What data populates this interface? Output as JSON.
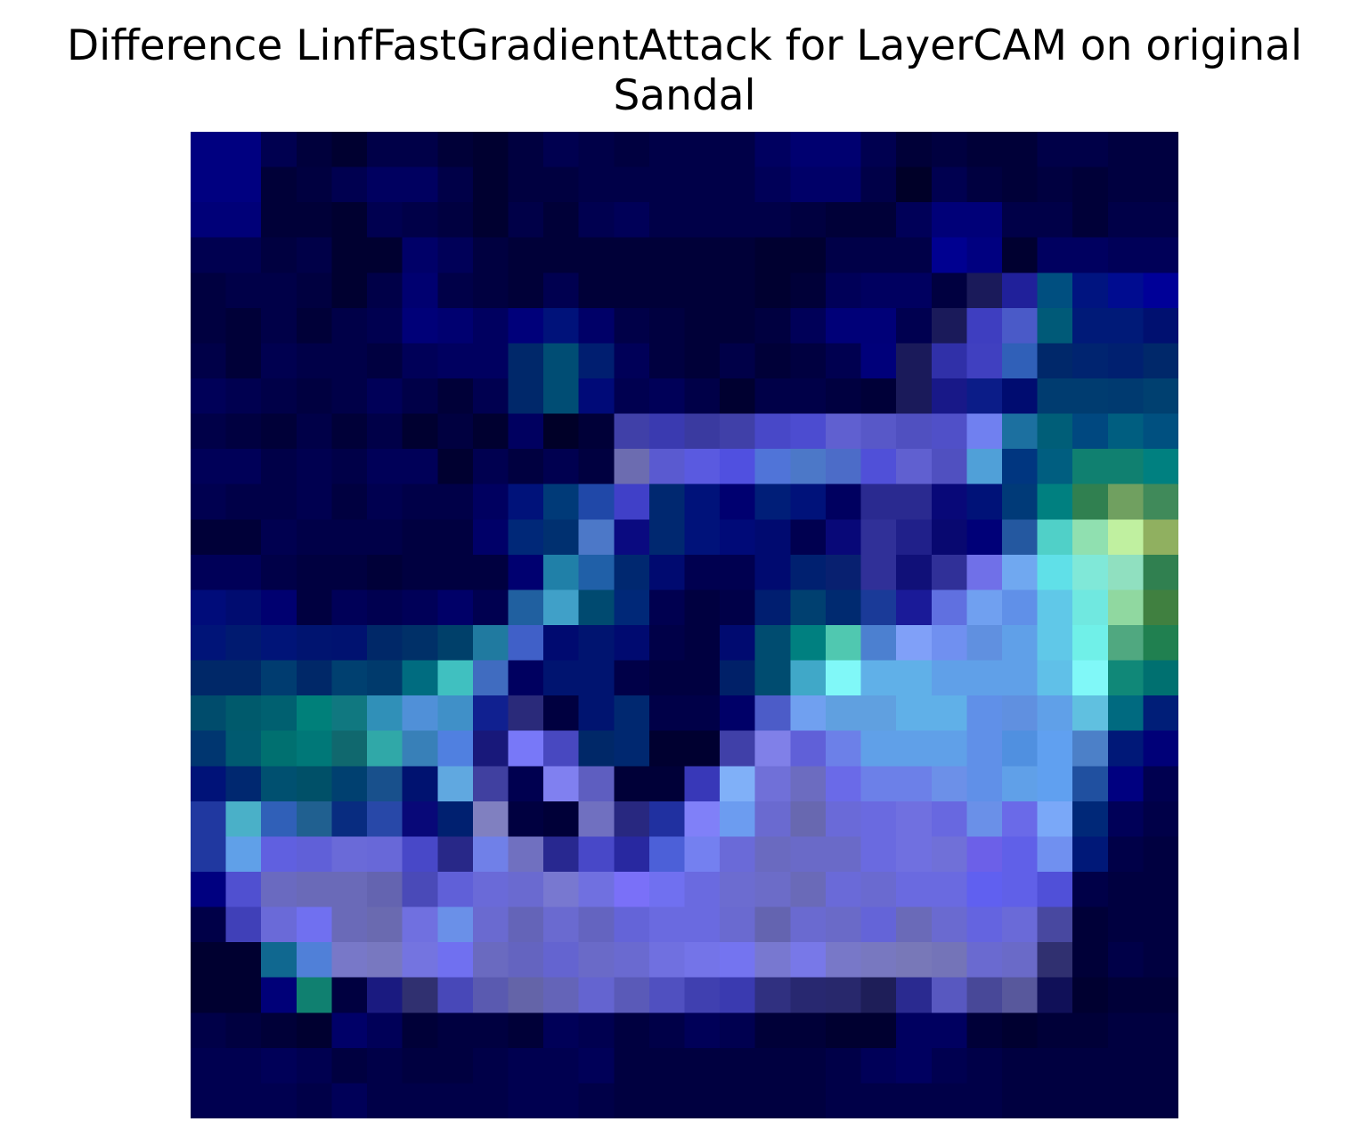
{
  "title": {
    "line1": "Difference LinfFastGradientAttack for LayerCAM on original",
    "line2": "Sandal"
  },
  "chart_data": {
    "type": "heatmap",
    "title": "Difference LinfFastGradientAttack for LayerCAM on original Sandal",
    "xlabel": "",
    "ylabel": "",
    "axes_visible": false,
    "rows": 28,
    "cols": 28,
    "colors": [
      "#000080",
      "#000080",
      "#000050",
      "#00003c",
      "#000030",
      "#000048",
      "#000048",
      "#000038",
      "#000030",
      "#000040",
      "#000050",
      "#000048",
      "#000040",
      "#000048",
      "#000048",
      "#000048",
      "#000060",
      "#000070",
      "#000070",
      "#000050",
      "#000038",
      "#000040",
      "#000038",
      "#000038",
      "#000048",
      "#000048",
      "#000040",
      "#000040",
      "#000080",
      "#000080",
      "#000038",
      "#000040",
      "#000050",
      "#000060",
      "#000060",
      "#000048",
      "#000030",
      "#000040",
      "#000040",
      "#000048",
      "#000048",
      "#000048",
      "#000048",
      "#000048",
      "#000058",
      "#000068",
      "#000068",
      "#000048",
      "#000028",
      "#000050",
      "#000040",
      "#000038",
      "#000040",
      "#000038",
      "#000040",
      "#000040",
      "#000078",
      "#000078",
      "#000038",
      "#000038",
      "#000030",
      "#000050",
      "#000048",
      "#000040",
      "#000030",
      "#000048",
      "#000038",
      "#000050",
      "#000058",
      "#000048",
      "#000048",
      "#000048",
      "#000048",
      "#000040",
      "#000038",
      "#000038",
      "#000058",
      "#000078",
      "#000078",
      "#000048",
      "#000048",
      "#000038",
      "#000048",
      "#000048",
      "#000050",
      "#000050",
      "#000040",
      "#000048",
      "#000030",
      "#000030",
      "#000068",
      "#000058",
      "#000040",
      "#000038",
      "#000038",
      "#000038",
      "#000038",
      "#000038",
      "#000038",
      "#000038",
      "#000030",
      "#000030",
      "#000048",
      "#000048",
      "#000048",
      "#000090",
      "#000080",
      "#000030",
      "#000060",
      "#000060",
      "#000058",
      "#000058",
      "#000040",
      "#000048",
      "#000048",
      "#000040",
      "#000030",
      "#000048",
      "#000070",
      "#000048",
      "#000040",
      "#000038",
      "#000050",
      "#000038",
      "#000038",
      "#000038",
      "#000038",
      "#000038",
      "#000030",
      "#000038",
      "#000058",
      "#000060",
      "#000060",
      "#000040",
      "#1a1a5a",
      "#20209a",
      "#004f80",
      "#001480",
      "#000c90",
      "#000098",
      "#000040",
      "#000038",
      "#000048",
      "#000038",
      "#000048",
      "#000050",
      "#000078",
      "#000070",
      "#000060",
      "#00007a",
      "#00127a",
      "#000068",
      "#000048",
      "#000040",
      "#000038",
      "#000038",
      "#000040",
      "#000058",
      "#000078",
      "#000078",
      "#000050",
      "#1a1a5a",
      "#3e3ec0",
      "#4a5ac8",
      "#005a78",
      "#001a78",
      "#001a78",
      "#001070",
      "#000048",
      "#000038",
      "#000050",
      "#000048",
      "#000048",
      "#000040",
      "#000058",
      "#000060",
      "#000060",
      "#00286a",
      "#004d74",
      "#001e70",
      "#000058",
      "#000040",
      "#000038",
      "#000048",
      "#000038",
      "#000040",
      "#000050",
      "#00007a",
      "#1a1a5a",
      "#3030a8",
      "#4040c0",
      "#3060b8",
      "#00286a",
      "#002470",
      "#002070",
      "#00286a",
      "#000058",
      "#000050",
      "#000048",
      "#000040",
      "#000048",
      "#000058",
      "#000048",
      "#000038",
      "#000050",
      "#00286a",
      "#004d74",
      "#000a78",
      "#000050",
      "#000058",
      "#000048",
      "#000030",
      "#000048",
      "#000048",
      "#000040",
      "#000038",
      "#1a1a5a",
      "#181888",
      "#0b1c88",
      "#000c70",
      "#003c70",
      "#003c70",
      "#003a70",
      "#004070",
      "#000048",
      "#000040",
      "#000038",
      "#000048",
      "#000038",
      "#000048",
      "#000030",
      "#000040",
      "#000030",
      "#000060",
      "#000028",
      "#000038",
      "#4040a8",
      "#3a3ab0",
      "#3a3aa0",
      "#4040a8",
      "#4848c8",
      "#4c4cd0",
      "#6060d0",
      "#5858c8",
      "#5050c0",
      "#5050c8",
      "#7080f0",
      "#1c70a0",
      "#005e78",
      "#004880",
      "#005e80",
      "#005080",
      "#000058",
      "#000058",
      "#000048",
      "#000050",
      "#000048",
      "#000058",
      "#000058",
      "#000030",
      "#000050",
      "#000040",
      "#000050",
      "#000040",
      "#6c6cb0",
      "#5a5ad0",
      "#5a5ae0",
      "#5050e0",
      "#5074d8",
      "#4c78c8",
      "#4c6cc8",
      "#5050d8",
      "#6060d0",
      "#5050c0",
      "#50a0d8",
      "#003680",
      "#005e80",
      "#108070",
      "#108070",
      "#008080",
      "#000050",
      "#000048",
      "#000048",
      "#000050",
      "#000040",
      "#000050",
      "#000048",
      "#000048",
      "#000060",
      "#00127a",
      "#003a78",
      "#2048a8",
      "#4040c8",
      "#002870",
      "#00127a",
      "#000070",
      "#001e78",
      "#00127a",
      "#000060",
      "#2a2a90",
      "#2a2a90",
      "#080878",
      "#001278",
      "#003a78",
      "#008080",
      "#308050",
      "#70a060",
      "#408a5a",
      "#000038",
      "#000038",
      "#000050",
      "#000048",
      "#000048",
      "#000048",
      "#000040",
      "#000040",
      "#000068",
      "#002878",
      "#003070",
      "#4c78c8",
      "#0a0a80",
      "#002870",
      "#00127a",
      "#000a78",
      "#000a70",
      "#000050",
      "#080878",
      "#303098",
      "#20208a",
      "#080870",
      "#000078",
      "#2458a0",
      "#50d0c8",
      "#90e0b0",
      "#c0f0a0",
      "#90b060",
      "#000058",
      "#000058",
      "#000048",
      "#000040",
      "#000040",
      "#000038",
      "#000040",
      "#000040",
      "#000040",
      "#000070",
      "#2080a8",
      "#2060a8",
      "#002870",
      "#000a70",
      "#000050",
      "#000050",
      "#000a70",
      "#002070",
      "#082070",
      "#303098",
      "#101078",
      "#303098",
      "#7070e8",
      "#70a8f0",
      "#60e0e8",
      "#80e8d8",
      "#90e0c0",
      "#308050",
      "#000c7a",
      "#000c70",
      "#000070",
      "#000040",
      "#000058",
      "#000050",
      "#000058",
      "#000068",
      "#000050",
      "#2060a0",
      "#40a0c8",
      "#004a70",
      "#002878",
      "#000050",
      "#000040",
      "#000048",
      "#001e70",
      "#004070",
      "#002a70",
      "#1a3a98",
      "#1a1a98",
      "#6070e0",
      "#70a0f0",
      "#6090e8",
      "#60c8e8",
      "#70e8e0",
      "#90d8a0",
      "#408040",
      "#001478",
      "#001a70",
      "#001478",
      "#001470",
      "#001270",
      "#002868",
      "#003068",
      "#00406a",
      "#207aa0",
      "#4060c8",
      "#000a70",
      "#001470",
      "#000a70",
      "#000048",
      "#000040",
      "#000a70",
      "#004c70",
      "#008080",
      "#50c8b0",
      "#4c80d0",
      "#80a0f8",
      "#7090f0",
      "#6090e0",
      "#60a0e8",
      "#60c8e8",
      "#70f0e8",
      "#50a880",
      "#208050",
      "#002868",
      "#002868",
      "#003c70",
      "#002868",
      "#004070",
      "#003a6c",
      "#006c80",
      "#40c0c0",
      "#406cc0",
      "#000060",
      "#001470",
      "#001470",
      "#000048",
      "#000040",
      "#000040",
      "#002068",
      "#004c70",
      "#40a8c8",
      "#80f8f8",
      "#60b0e8",
      "#60b0e8",
      "#60a0e8",
      "#60a0e8",
      "#60a0e8",
      "#60c0e8",
      "#80f8f8",
      "#108878",
      "#007070",
      "#004c6c",
      "#005a6c",
      "#006070",
      "#00807a",
      "#107880",
      "#3090b8",
      "#5090d8",
      "#4090c8",
      "#102090",
      "#2a2a7a",
      "#000040",
      "#001470",
      "#002870",
      "#000048",
      "#000048",
      "#000068",
      "#4c5cc8",
      "#70a0f0",
      "#60a0e0",
      "#60a0e0",
      "#60b0e8",
      "#60b0e8",
      "#6090e8",
      "#6090e0",
      "#60a0e8",
      "#60c0e0",
      "#006a80",
      "#001e78",
      "#003670",
      "#005a70",
      "#007070",
      "#007878",
      "#10686e",
      "#30a8a8",
      "#3880b8",
      "#5080e0",
      "#18187a",
      "#7878f8",
      "#4848c0",
      "#002868",
      "#002870",
      "#000030",
      "#000030",
      "#4040a8",
      "#8080e8",
      "#6060d8",
      "#6c80e8",
      "#60a0e8",
      "#60a0e8",
      "#60a0e8",
      "#6090e8",
      "#5090e0",
      "#60a0f0",
      "#4c80c8",
      "#001878",
      "#000078",
      "#001278",
      "#002870",
      "#005070",
      "#005068",
      "#004070",
      "#18508c",
      "#001270",
      "#60a8e0",
      "#4040a0",
      "#000050",
      "#8080f0",
      "#5e5ec0",
      "#000038",
      "#000038",
      "#3838b8",
      "#80b0f8",
      "#7070d8",
      "#6c6cc0",
      "#6a6ae8",
      "#6c80e8",
      "#6c80e8",
      "#6c90e8",
      "#6090e8",
      "#60a0e8",
      "#60a0f0",
      "#2050a0",
      "#000080",
      "#000050",
      "#2038a0",
      "#4ab0c8",
      "#3060b8",
      "#206090",
      "#082c80",
      "#2848a8",
      "#080878",
      "#002070",
      "#8080c0",
      "#000040",
      "#000038",
      "#7070c0",
      "#282880",
      "#2030a0",
      "#8080f8",
      "#6c9cf0",
      "#6a6ad0",
      "#6868b0",
      "#6a6ad8",
      "#6a6ae0",
      "#7070e0",
      "#6868e0",
      "#6a90e8",
      "#6a6ae8",
      "#7aa8f8",
      "#002878",
      "#000058",
      "#000048",
      "#2038a0",
      "#60a0e8",
      "#6060e0",
      "#6060d8",
      "#6a6ad8",
      "#6868d8",
      "#4848c8",
      "#282888",
      "#7080e8",
      "#7070c0",
      "#282890",
      "#4848c8",
      "#2828a0",
      "#4c60d8",
      "#7480f0",
      "#6a6ad8",
      "#6a6ac0",
      "#6a6ac8",
      "#6a6ac8",
      "#6a6ae0",
      "#7070e0",
      "#7070d8",
      "#6c60e8",
      "#6060e8",
      "#7090f0",
      "#001878",
      "#000048",
      "#000040",
      "#000080",
      "#5050d0",
      "#6a6ac0",
      "#6a6ab8",
      "#6a6ab8",
      "#6464b0",
      "#4a4ab8",
      "#6060d8",
      "#6a6ad8",
      "#6a6ad0",
      "#7878d0",
      "#7070e0",
      "#7a70f8",
      "#7070f0",
      "#6a6ae0",
      "#6c6cd0",
      "#6c6cc8",
      "#6a6ab8",
      "#6a6ad8",
      "#6a6ad0",
      "#6a6ae0",
      "#6a6ae0",
      "#6060f0",
      "#6060e8",
      "#5050d8",
      "#000048",
      "#000040",
      "#000040",
      "#000048",
      "#4040b8",
      "#6a6ad8",
      "#7070f0",
      "#6a6ab8",
      "#6a6ab0",
      "#7070e0",
      "#6a90e8",
      "#6a6ad0",
      "#6464b8",
      "#6a6ad0",
      "#6464c0",
      "#6464d8",
      "#6a6ae0",
      "#6a6ae0",
      "#6a6ad0",
      "#6464b0",
      "#6a6ad0",
      "#6a6ac8",
      "#6464d8",
      "#6a6ab8",
      "#6a6ad0",
      "#6464e0",
      "#6a6ad8",
      "#4848a0",
      "#000038",
      "#000040",
      "#000040",
      "#000030",
      "#000030",
      "#106890",
      "#5080d8",
      "#7878c8",
      "#7878c0",
      "#7474e0",
      "#7070f0",
      "#6a6ac0",
      "#6464c0",
      "#6464d0",
      "#6a6ac8",
      "#6a6ad0",
      "#7070e0",
      "#7474e8",
      "#7474f0",
      "#7878d0",
      "#7878e8",
      "#7878c8",
      "#7878c0",
      "#7878b8",
      "#7474b8",
      "#6a6ad0",
      "#6a6ac8",
      "#303070",
      "#000038",
      "#000048",
      "#000040",
      "#000030",
      "#000030",
      "#000078",
      "#108070",
      "#000040",
      "#1a1a80",
      "#303070",
      "#4848b8",
      "#5a5ab0",
      "#6464a8",
      "#6464b8",
      "#6464d0",
      "#5a5ab8",
      "#5050c0",
      "#4040b0",
      "#3a3ab0",
      "#303080",
      "#282870",
      "#28286c",
      "#1e1e58",
      "#2a2a90",
      "#5858c0",
      "#484898",
      "#58589c",
      "#101058",
      "#000030",
      "#000038",
      "#000038",
      "#000048",
      "#000040",
      "#000038",
      "#000030",
      "#000068",
      "#000058",
      "#000038",
      "#000040",
      "#000040",
      "#000038",
      "#000058",
      "#000050",
      "#000040",
      "#000048",
      "#000058",
      "#000050",
      "#000038",
      "#000038",
      "#000030",
      "#000030",
      "#000060",
      "#000060",
      "#000038",
      "#000030",
      "#000038",
      "#000038",
      "#000040",
      "#000040",
      "#000050",
      "#000050",
      "#000058",
      "#000050",
      "#000040",
      "#000048",
      "#000040",
      "#000040",
      "#000048",
      "#000050",
      "#000050",
      "#000058",
      "#000040",
      "#000040",
      "#000040",
      "#000040",
      "#000040",
      "#000040",
      "#000048",
      "#000058",
      "#000060",
      "#000050",
      "#000048",
      "#000040",
      "#000040",
      "#000040",
      "#000040",
      "#000040",
      "#000050",
      "#000050",
      "#000050",
      "#000048",
      "#000058",
      "#000048",
      "#000048",
      "#000048",
      "#000048",
      "#000050",
      "#000050",
      "#000048",
      "#000040",
      "#000040",
      "#000040",
      "#000040",
      "#000040",
      "#000040",
      "#000048",
      "#000048",
      "#000048",
      "#000048",
      "#000048",
      "#000040",
      "#000040",
      "#000040",
      "#000040",
      "#000040"
    ]
  }
}
